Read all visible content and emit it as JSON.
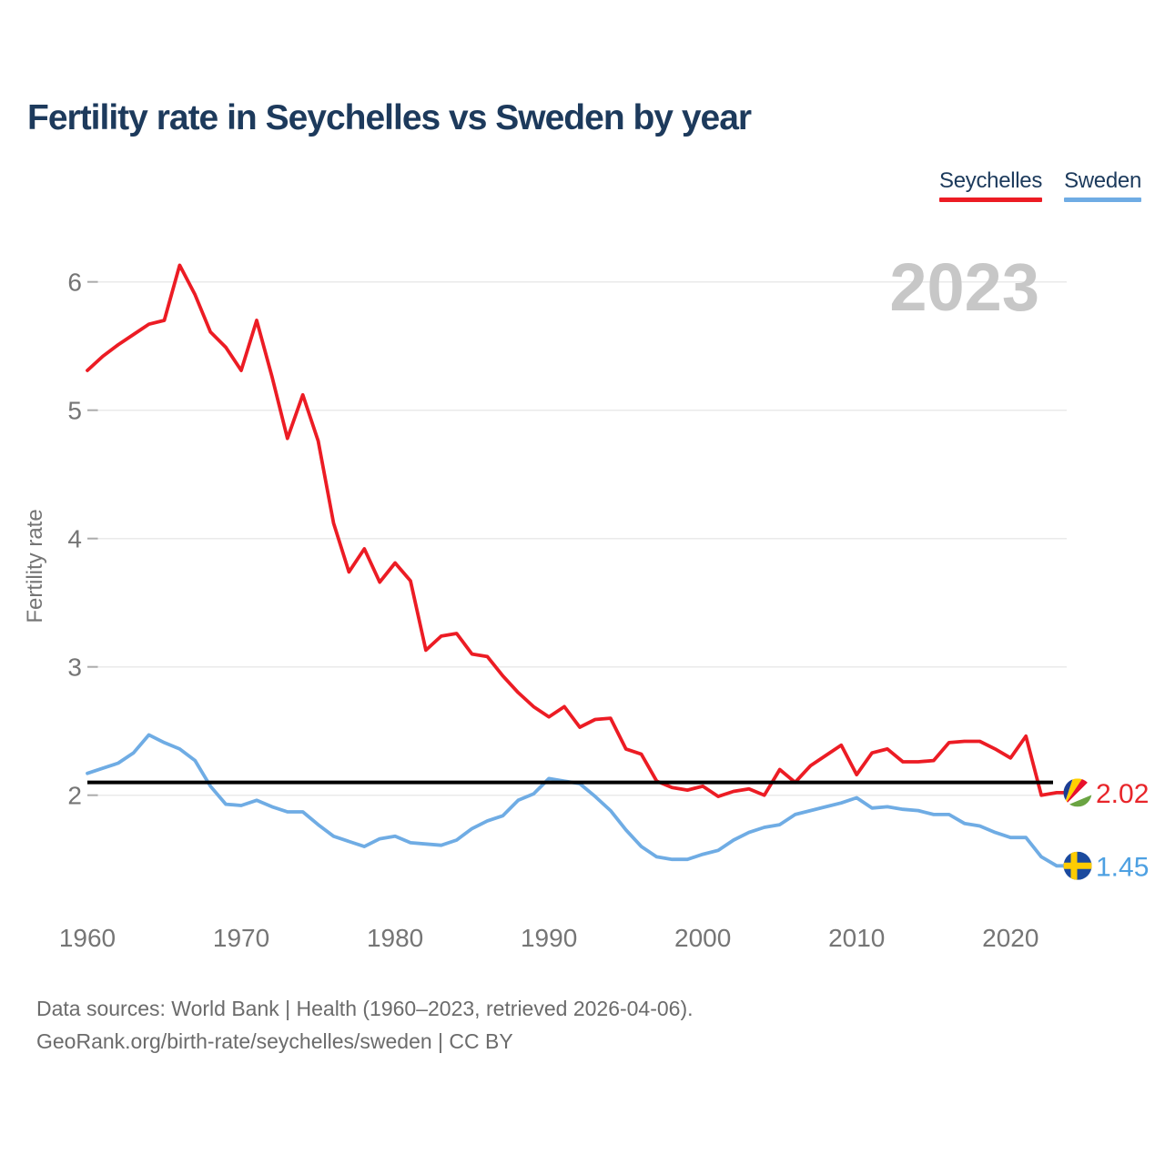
{
  "title": "Fertility rate in Seychelles vs Sweden by year",
  "legend": [
    {
      "label": "Seychelles",
      "color": "#ec1c24"
    },
    {
      "label": "Sweden",
      "color": "#6face4"
    }
  ],
  "footer": {
    "line1": "Data sources: World Bank | Health (1960–2023, retrieved 2026-04-06).",
    "line2": "GeoRank.org/birth-rate/seychelles/sweden | CC BY"
  },
  "chart_data": {
    "type": "line",
    "title": "Fertility rate in Seychelles vs Sweden by year",
    "watermark": "2023",
    "ylabel": "Fertility rate",
    "xlabel": "",
    "grid": true,
    "legend_position": "top-right",
    "y_ticks": [
      2,
      3,
      4,
      5,
      6
    ],
    "x_ticks": [
      1960,
      1970,
      1980,
      1990,
      2000,
      2010,
      2020
    ],
    "ylim": [
      1.2,
      6.35
    ],
    "xlim": [
      1960,
      2023
    ],
    "reference_line": {
      "value": 2.1,
      "color": "#000000"
    },
    "x": [
      1960,
      1961,
      1962,
      1963,
      1964,
      1965,
      1966,
      1967,
      1968,
      1969,
      1970,
      1971,
      1972,
      1973,
      1974,
      1975,
      1976,
      1977,
      1978,
      1979,
      1980,
      1981,
      1982,
      1983,
      1984,
      1985,
      1986,
      1987,
      1988,
      1989,
      1990,
      1991,
      1992,
      1993,
      1994,
      1995,
      1996,
      1997,
      1998,
      1999,
      2000,
      2001,
      2002,
      2003,
      2004,
      2005,
      2006,
      2007,
      2008,
      2009,
      2010,
      2011,
      2012,
      2013,
      2014,
      2015,
      2016,
      2017,
      2018,
      2019,
      2020,
      2021,
      2022,
      2023
    ],
    "series": [
      {
        "name": "Seychelles",
        "color": "#ec1c24",
        "label_color": "#e8252a",
        "flag": "seychelles-flag-icon",
        "end_label": "2.02",
        "values": [
          5.31,
          5.42,
          5.51,
          5.59,
          5.67,
          5.7,
          6.13,
          5.9,
          5.61,
          5.49,
          5.31,
          5.7,
          5.26,
          4.78,
          5.12,
          4.76,
          4.12,
          3.74,
          3.92,
          3.66,
          3.81,
          3.67,
          3.13,
          3.24,
          3.26,
          3.1,
          3.08,
          2.93,
          2.8,
          2.69,
          2.61,
          2.69,
          2.53,
          2.59,
          2.6,
          2.36,
          2.32,
          2.11,
          2.06,
          2.04,
          2.07,
          1.99,
          2.03,
          2.05,
          2.0,
          2.2,
          2.1,
          2.23,
          2.31,
          2.39,
          2.16,
          2.33,
          2.36,
          2.26,
          2.26,
          2.27,
          2.41,
          2.42,
          2.42,
          2.36,
          2.29,
          2.46,
          2.0,
          2.02
        ]
      },
      {
        "name": "Sweden",
        "color": "#6face4",
        "label_color": "#4da0e2",
        "flag": "sweden-flag-icon",
        "end_label": "1.45",
        "values": [
          2.17,
          2.21,
          2.25,
          2.33,
          2.47,
          2.41,
          2.36,
          2.27,
          2.07,
          1.93,
          1.92,
          1.96,
          1.91,
          1.87,
          1.87,
          1.77,
          1.68,
          1.64,
          1.6,
          1.66,
          1.68,
          1.63,
          1.62,
          1.61,
          1.65,
          1.74,
          1.8,
          1.84,
          1.96,
          2.01,
          2.13,
          2.11,
          2.09,
          1.99,
          1.88,
          1.73,
          1.6,
          1.52,
          1.5,
          1.5,
          1.54,
          1.57,
          1.65,
          1.71,
          1.75,
          1.77,
          1.85,
          1.88,
          1.91,
          1.94,
          1.98,
          1.9,
          1.91,
          1.89,
          1.88,
          1.85,
          1.85,
          1.78,
          1.76,
          1.71,
          1.67,
          1.67,
          1.52,
          1.45
        ]
      }
    ]
  }
}
